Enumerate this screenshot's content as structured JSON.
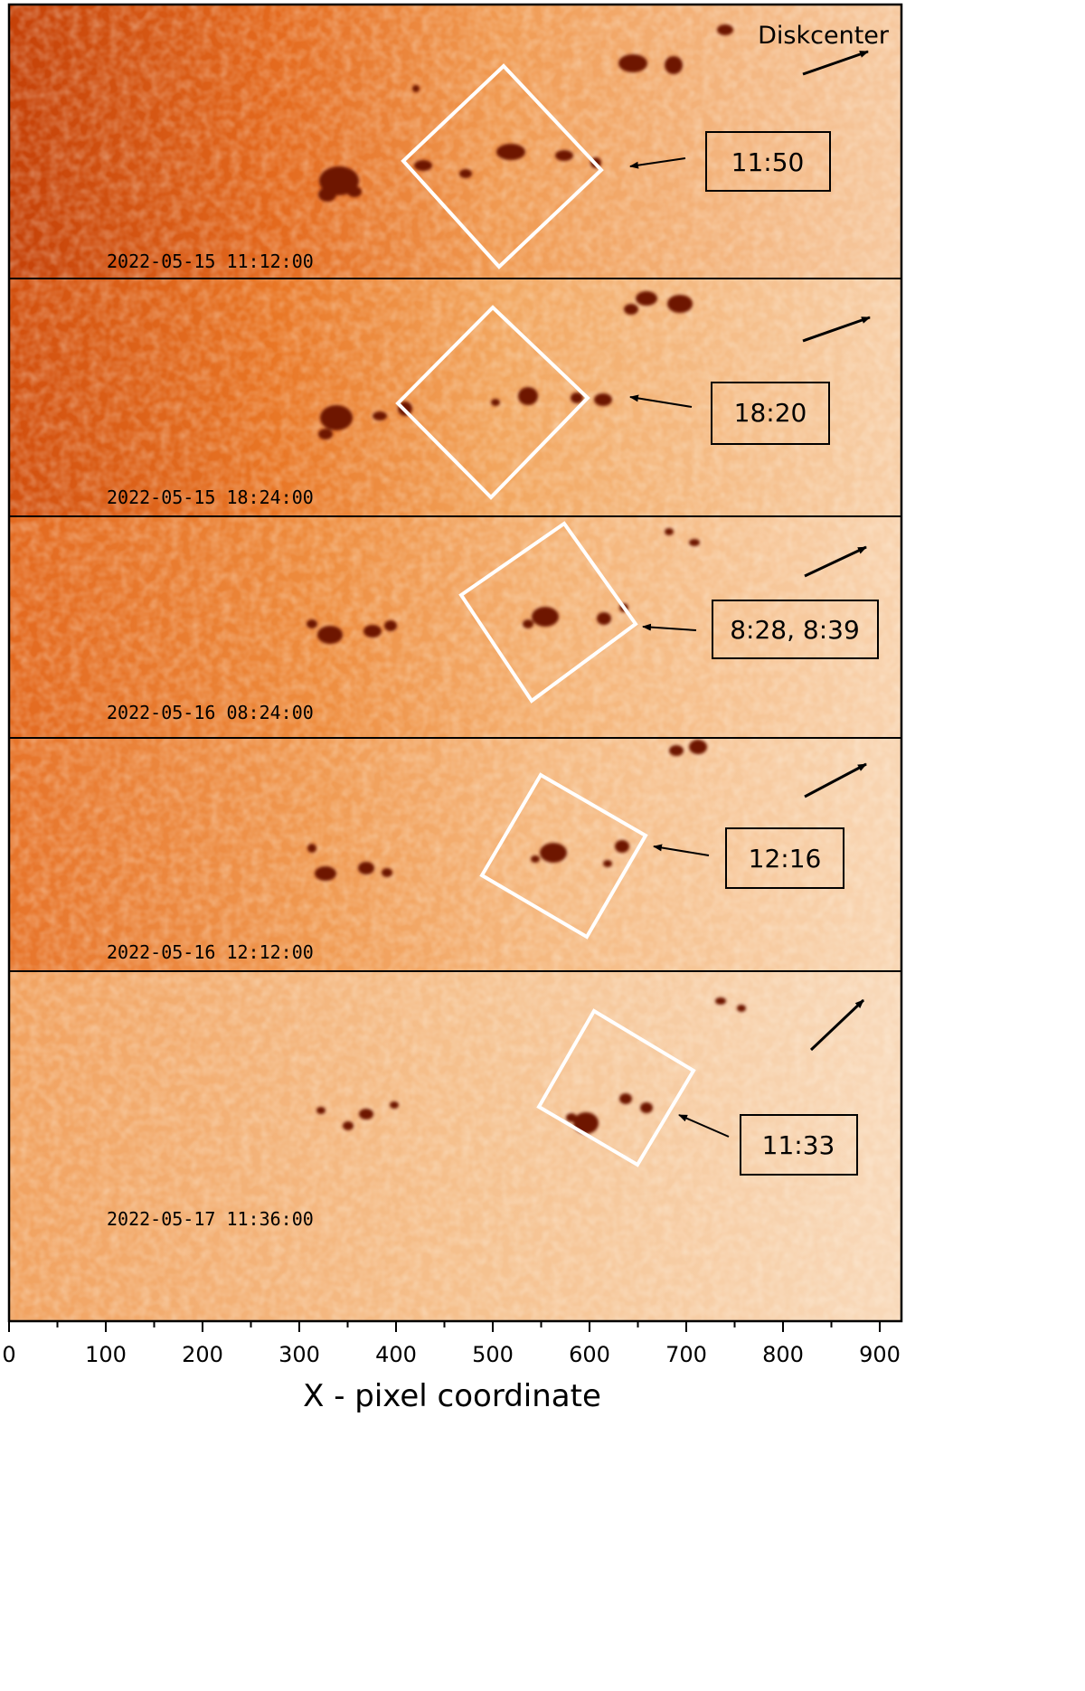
{
  "figure": {
    "corner_label": "Diskcenter",
    "xlabel": "X - pixel coordinate",
    "x_range": [
      0,
      920
    ],
    "x_ticks": [
      "0",
      "100",
      "200",
      "300",
      "400",
      "500",
      "600",
      "700",
      "800",
      "900"
    ],
    "frame_color": "#000000",
    "box_color": "#ffffff"
  },
  "panels": [
    {
      "timestamp": "2022-05-15 11:12:00",
      "time_label": "11:50"
    },
    {
      "timestamp": "2022-05-15 18:24:00",
      "time_label": "18:20"
    },
    {
      "timestamp": "2022-05-16 08:24:00",
      "time_label": "8:28, 8:39"
    },
    {
      "timestamp": "2022-05-16 12:12:00",
      "time_label": "12:16"
    },
    {
      "timestamp": "2022-05-17 11:36:00",
      "time_label": "11:33"
    }
  ]
}
